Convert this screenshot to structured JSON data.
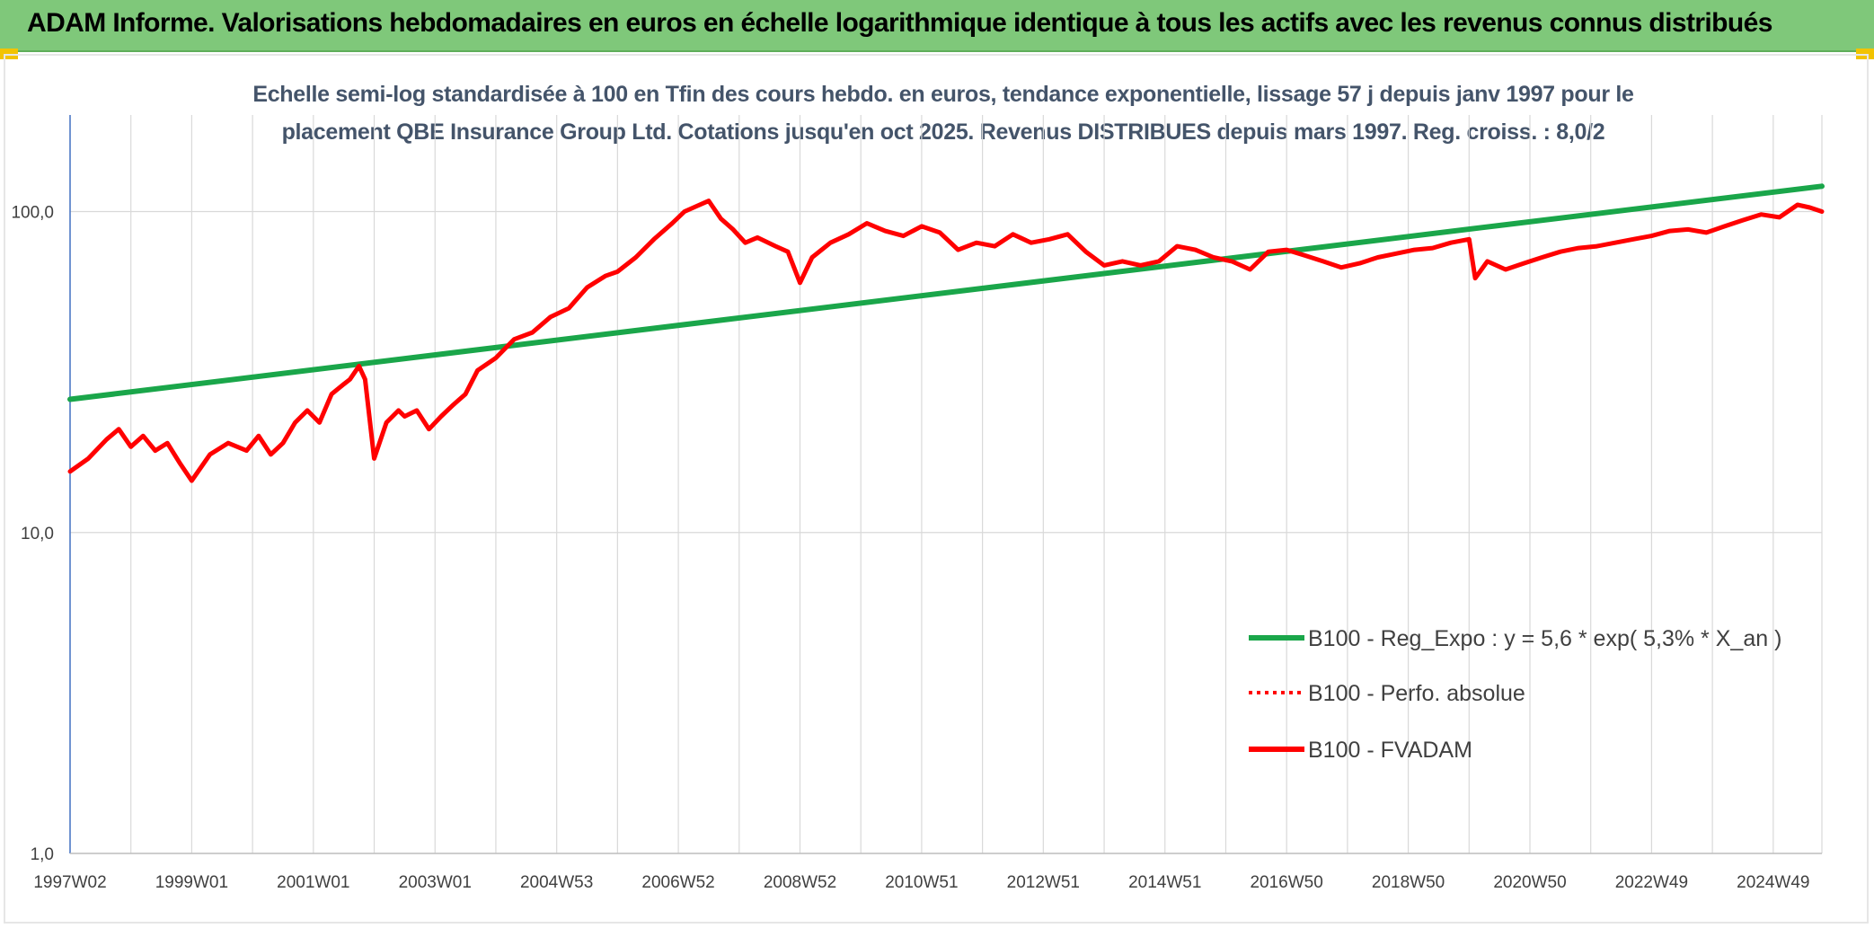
{
  "header": {
    "title": "ADAM Informe. Valorisations hebdomadaires en euros en échelle logarithmique identique à tous les actifs avec les revenus connus distribués"
  },
  "colors": {
    "header_bg": "#7fc87a",
    "regression": "#1aa64a",
    "series": "#ff0000",
    "grid": "#d9d9d9",
    "title_text": "#44546a"
  },
  "chart_data": {
    "type": "line",
    "title": "Echelle semi-log standardisée à 100 en Tfin des cours hebdo. en euros, tendance exponentielle, lissage 57 j depuis janv 1997 pour le placement QBE Insurance Group Ltd. Cotations jusqu'en oct 2025. Revenus DISTRIBUES depuis mars 1997. Reg. croiss. : 8,0/2",
    "title_lines": [
      "Echelle semi-log standardisée à 100 en Tfin des cours hebdo. en euros, tendance exponentielle, lissage 57 j depuis janv 1997 pour le",
      "placement QBE Insurance Group Ltd. Cotations jusqu'en oct 2025. Revenus DISTRIBUES depuis mars 1997. Reg. croiss. : 8,0/2"
    ],
    "y_scale": "log",
    "ylim": [
      1,
      200
    ],
    "y_ticks": [
      {
        "value": 1,
        "label": "1,0"
      },
      {
        "value": 10,
        "label": "10,0"
      },
      {
        "value": 100,
        "label": "100,0"
      }
    ],
    "xlim": [
      1997.0,
      2025.8
    ],
    "x_ticks": [
      {
        "value": 1997.0,
        "label": "1997W02"
      },
      {
        "value": 1999.0,
        "label": "1999W01"
      },
      {
        "value": 2001.0,
        "label": "2001W01"
      },
      {
        "value": 2003.0,
        "label": "2003W01"
      },
      {
        "value": 2005.0,
        "label": "2004W53"
      },
      {
        "value": 2007.0,
        "label": "2006W52"
      },
      {
        "value": 2009.0,
        "label": "2008W52"
      },
      {
        "value": 2011.0,
        "label": "2010W51"
      },
      {
        "value": 2013.0,
        "label": "2012W51"
      },
      {
        "value": 2015.0,
        "label": "2014W51"
      },
      {
        "value": 2017.0,
        "label": "2016W50"
      },
      {
        "value": 2019.0,
        "label": "2018W50"
      },
      {
        "value": 2021.0,
        "label": "2020W50"
      },
      {
        "value": 2023.0,
        "label": "2022W49"
      },
      {
        "value": 2025.0,
        "label": "2024W49"
      }
    ],
    "grid": true,
    "legend_position": "bottom-right",
    "series": [
      {
        "name": "B100 - Reg_Expo : y = 5,6 * exp( 5,3% *  X_an )",
        "style": "solid",
        "color": "#1aa64a",
        "x": [
          1997.0,
          2025.8
        ],
        "y": [
          26,
          120
        ]
      },
      {
        "name": "B100 - Perfo. absolue",
        "style": "dotted",
        "color": "#ff0000",
        "x": [],
        "y": []
      },
      {
        "name": "B100 - FVADAM",
        "style": "solid",
        "color": "#ff0000",
        "x": [
          1997.0,
          1997.3,
          1997.6,
          1997.8,
          1998.0,
          1998.2,
          1998.4,
          1998.6,
          1998.8,
          1999.0,
          1999.3,
          1999.6,
          1999.9,
          2000.1,
          2000.3,
          2000.5,
          2000.7,
          2000.9,
          2001.1,
          2001.3,
          2001.5,
          2001.6,
          2001.75,
          2001.85,
          2002.0,
          2002.2,
          2002.4,
          2002.5,
          2002.7,
          2002.9,
          2003.1,
          2003.3,
          2003.5,
          2003.7,
          2004.0,
          2004.3,
          2004.6,
          2004.9,
          2005.2,
          2005.5,
          2005.8,
          2006.0,
          2006.3,
          2006.6,
          2006.9,
          2007.1,
          2007.3,
          2007.5,
          2007.7,
          2007.9,
          2008.1,
          2008.3,
          2008.6,
          2008.8,
          2009.0,
          2009.2,
          2009.5,
          2009.8,
          2010.1,
          2010.4,
          2010.7,
          2011.0,
          2011.3,
          2011.6,
          2011.9,
          2012.2,
          2012.5,
          2012.8,
          2013.1,
          2013.4,
          2013.7,
          2014.0,
          2014.3,
          2014.6,
          2014.9,
          2015.2,
          2015.5,
          2015.8,
          2016.1,
          2016.4,
          2016.7,
          2017.0,
          2017.3,
          2017.6,
          2017.9,
          2018.2,
          2018.5,
          2018.8,
          2019.1,
          2019.4,
          2019.7,
          2020.0,
          2020.1,
          2020.3,
          2020.6,
          2020.9,
          2021.2,
          2021.5,
          2021.8,
          2022.1,
          2022.4,
          2022.7,
          2023.0,
          2023.3,
          2023.6,
          2023.9,
          2024.2,
          2024.5,
          2024.8,
          2025.1,
          2025.4,
          2025.6,
          2025.8
        ],
        "y": [
          15.5,
          17,
          19.5,
          21,
          18.5,
          20,
          18,
          19,
          16.5,
          14.5,
          17.5,
          19,
          18,
          20,
          17.5,
          19,
          22,
          24,
          22,
          27,
          29,
          30,
          33,
          30,
          17,
          22,
          24,
          23,
          24,
          21,
          23,
          25,
          27,
          32,
          35,
          40,
          42,
          47,
          50,
          58,
          63,
          65,
          72,
          82,
          92,
          100,
          104,
          108,
          95,
          88,
          80,
          83,
          78,
          75,
          60,
          72,
          80,
          85,
          92,
          87,
          84,
          90,
          86,
          76,
          80,
          78,
          85,
          80,
          82,
          85,
          75,
          68,
          70,
          68,
          70,
          78,
          76,
          72,
          70,
          66,
          75,
          76,
          73,
          70,
          67,
          69,
          72,
          74,
          76,
          77,
          80,
          82,
          62,
          70,
          66,
          69,
          72,
          75,
          77,
          78,
          80,
          82,
          84,
          87,
          88,
          86,
          90,
          94,
          98,
          96,
          105,
          103,
          100
        ]
      }
    ]
  }
}
